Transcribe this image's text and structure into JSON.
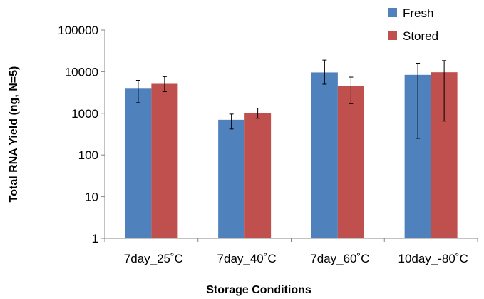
{
  "chart_data": {
    "type": "bar",
    "scale": "log",
    "xlabel": "Storage Conditions",
    "ylabel": "Total RNA Yield (ng, N=5)",
    "ylim": [
      1,
      100000
    ],
    "yticks": [
      "1",
      "10",
      "100",
      "1000",
      "10000",
      "100000"
    ],
    "grid": false,
    "legend_position": "top-right",
    "categories": [
      "7day_25˚C",
      "7day_40˚C",
      "7day_60˚C",
      "10day_-80˚C"
    ],
    "series": [
      {
        "name": "Fresh",
        "color": "#4F81BD",
        "values": [
          3900,
          700,
          9600,
          8400
        ],
        "error_low": [
          1800,
          420,
          5000,
          250
        ],
        "error_high": [
          6200,
          960,
          19000,
          16000
        ]
      },
      {
        "name": "Stored",
        "color": "#C0504D",
        "values": [
          5100,
          1020,
          4500,
          9700
        ],
        "error_low": [
          3300,
          760,
          1700,
          650
        ],
        "error_high": [
          7600,
          1330,
          7400,
          18500
        ]
      }
    ]
  }
}
